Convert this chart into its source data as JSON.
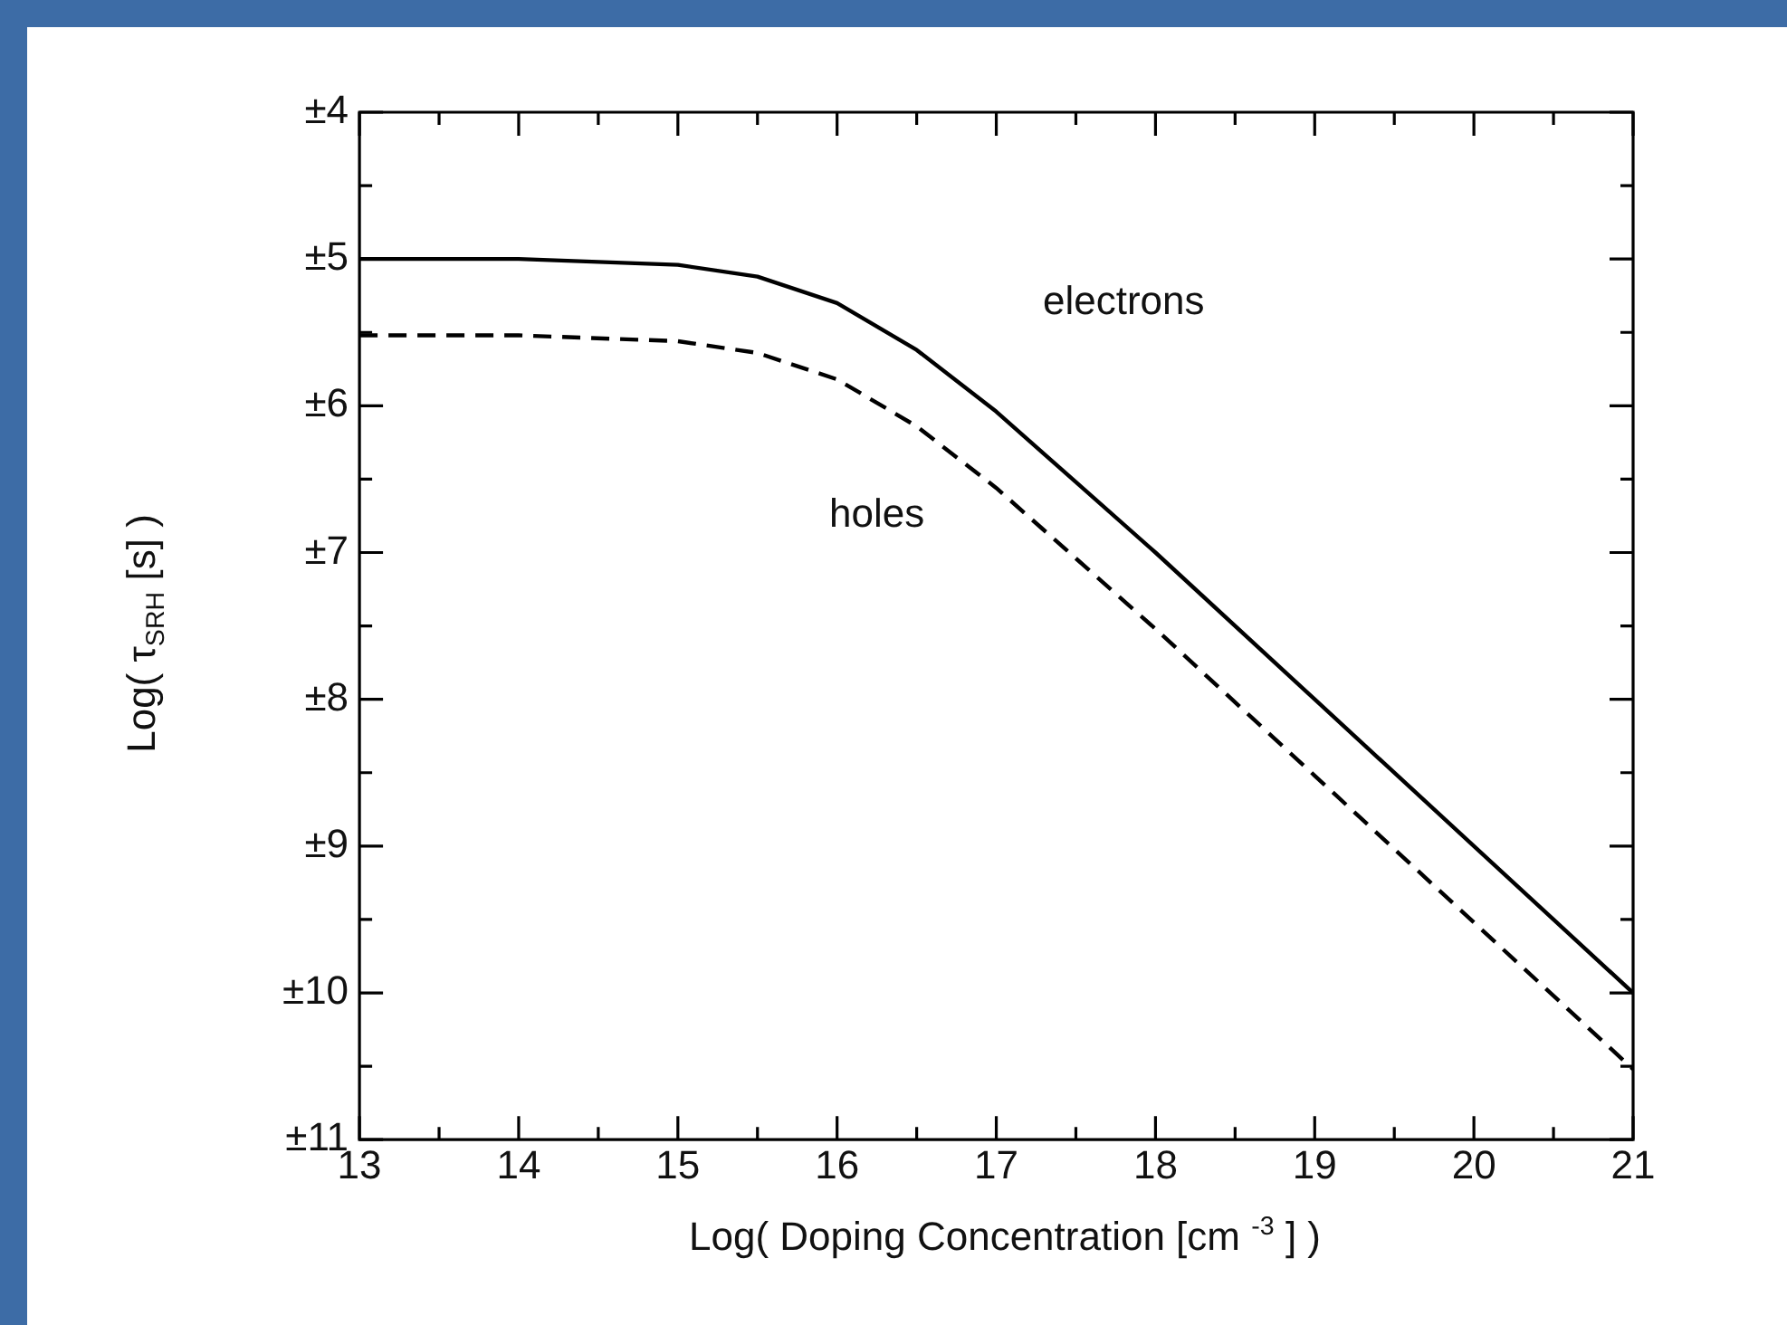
{
  "chart_data": {
    "type": "line",
    "xlabel": "Log( Doping Concentration [cm $^{-3}$ ] )",
    "ylabel": "Log( τ$_{SRH}$ [s] )",
    "x": [
      13,
      14,
      15,
      15.5,
      16,
      16.5,
      17,
      17.5,
      18,
      19,
      20,
      21
    ],
    "series": [
      {
        "name": "electrons",
        "color": "#000000",
        "line_style": "solid",
        "values": [
          -5.0,
          -5.0,
          -5.04,
          -5.12,
          -5.3,
          -5.62,
          -6.04,
          -6.52,
          -7.0,
          -8.0,
          -9.0,
          -10.0
        ]
      },
      {
        "name": "holes",
        "color": "#000000",
        "line_style": "dashed",
        "values": [
          -5.52,
          -5.52,
          -5.56,
          -5.64,
          -5.82,
          -6.14,
          -6.56,
          -7.04,
          -7.52,
          -8.52,
          -9.52,
          -10.52
        ]
      }
    ],
    "xlim": [
      13,
      21
    ],
    "xticks": [
      13,
      {
        "value": 13.5,
        "label": null
      },
      14,
      {
        "value": 14.5,
        "label": null
      },
      15,
      {
        "value": 15.5,
        "label": null
      },
      16,
      {
        "value": 16.5,
        "label": null
      },
      17,
      {
        "value": 17.5,
        "label": null
      },
      18,
      {
        "value": 18.5,
        "label": null
      },
      19,
      {
        "value": 19.5,
        "label": null
      },
      20,
      {
        "value": 20.5,
        "label": null
      },
      21
    ],
    "ylim": [
      -11,
      -4
    ],
    "yticks": [
      {
        "value": -11,
        "label": "±11"
      },
      {
        "value": -10.5,
        "label": null
      },
      {
        "value": -10,
        "label": "±10"
      },
      {
        "value": -9.5,
        "label": null
      },
      {
        "value": -9,
        "label": "±9"
      },
      {
        "value": -8.5,
        "label": null
      },
      {
        "value": -8,
        "label": "±8"
      },
      {
        "value": -7.5,
        "label": null
      },
      {
        "value": -7,
        "label": "±7"
      },
      {
        "value": -6.5,
        "label": null
      },
      {
        "value": -6,
        "label": "±6"
      },
      {
        "value": -5.5,
        "label": null
      },
      {
        "value": -5,
        "label": "±5"
      },
      {
        "value": -4.5,
        "label": null
      },
      {
        "value": -4,
        "label": "±4"
      }
    ],
    "marker": "none",
    "grid": false,
    "legend": false
  }
}
